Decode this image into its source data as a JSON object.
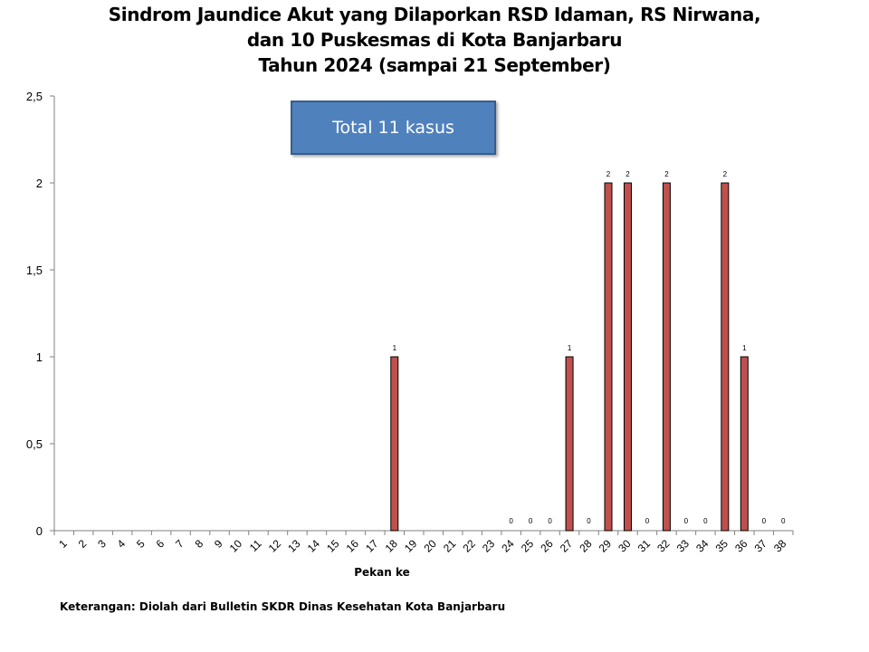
{
  "chart_data": {
    "type": "bar",
    "title_lines": [
      "Sindrom Jaundice Akut yang Dilaporkan RSD Idaman, RS Nirwana,",
      "dan 10 Puskesmas di Kota Banjarbaru",
      "Tahun 2024 (sampai 21 September)"
    ],
    "xlabel": "Pekan ke",
    "ylabel": "",
    "ylim": [
      0,
      2.5
    ],
    "yticks": [
      "0",
      "0,5",
      "1",
      "1,5",
      "2",
      "2,5"
    ],
    "categories": [
      "1",
      "2",
      "3",
      "4",
      "5",
      "6",
      "7",
      "8",
      "9",
      "10",
      "11",
      "12",
      "13",
      "14",
      "15",
      "16",
      "17",
      "18",
      "19",
      "20",
      "21",
      "22",
      "23",
      "24",
      "25",
      "26",
      "27",
      "28",
      "29",
      "30",
      "31",
      "32",
      "33",
      "34",
      "35",
      "36",
      "37",
      "38"
    ],
    "values": [
      0,
      0,
      0,
      0,
      0,
      0,
      0,
      0,
      0,
      0,
      0,
      0,
      0,
      0,
      0,
      0,
      0,
      1,
      0,
      0,
      0,
      0,
      0,
      0,
      0,
      0,
      1,
      0,
      2,
      2,
      0,
      2,
      0,
      0,
      2,
      1,
      0,
      0
    ],
    "data_labels": [
      null,
      null,
      null,
      null,
      null,
      null,
      null,
      null,
      null,
      null,
      null,
      null,
      null,
      null,
      null,
      null,
      null,
      "1",
      null,
      null,
      null,
      null,
      null,
      "0",
      "0",
      "0",
      "1",
      "0",
      "2",
      "2",
      "0",
      "2",
      "0",
      "0",
      "2",
      "1",
      "0",
      "0"
    ],
    "bar_color": "#c0504d",
    "grid": false,
    "legend": "none"
  },
  "callout": {
    "text": "Total 11 kasus"
  },
  "footnote": "Keterangan: Diolah dari Bulletin SKDR Dinas Kesehatan Kota Banjarbaru"
}
